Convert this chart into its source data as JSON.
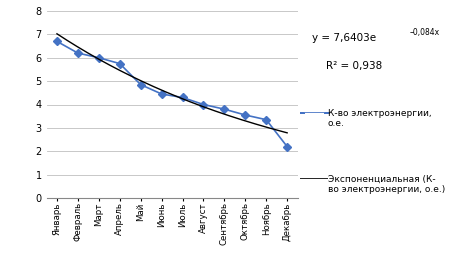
{
  "months": [
    "Январь",
    "Февраль",
    "Март",
    "Апрель",
    "Май",
    "Июнь",
    "Июль",
    "Август",
    "Сентябрь",
    "Октябрь",
    "Ноябрь",
    "Декабрь"
  ],
  "values": [
    6.7,
    6.2,
    6.0,
    5.75,
    4.85,
    4.45,
    4.3,
    4.0,
    3.8,
    3.55,
    3.35,
    2.2
  ],
  "line_color": "#4472c4",
  "trend_color": "#000000",
  "marker": "D",
  "marker_size": 4,
  "ylim": [
    0,
    8
  ],
  "yticks": [
    0,
    1,
    2,
    3,
    4,
    5,
    6,
    7,
    8
  ],
  "a": 7.6403,
  "b": -0.084,
  "background_color": "#ffffff",
  "grid_color": "#bfbfbf",
  "legend_data_label": "К-во электроэнергии,\nо.е.",
  "legend_trend_label": "Экспоненциальная (К-\nво электроэнергии, о.е.)"
}
